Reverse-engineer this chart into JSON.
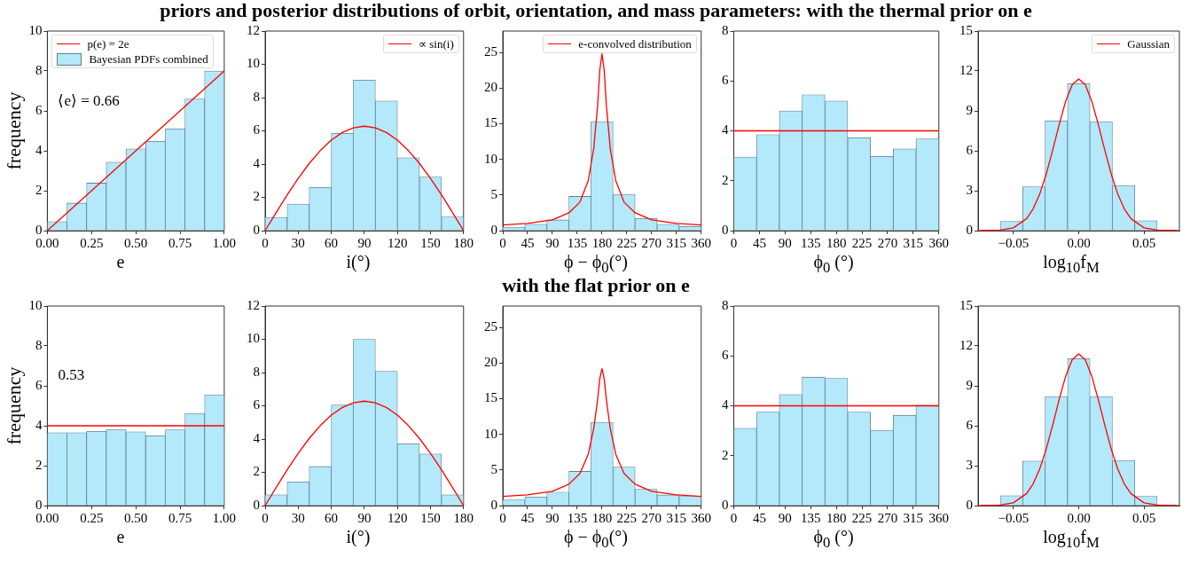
{
  "chart_data": [
    {
      "type": "histogram",
      "xlabel": "e",
      "ylabel": "frequency",
      "legend": "top left",
      "annotations": [
        "⟨e⟩ = 0.66"
      ],
      "bins": [
        0,
        0.111,
        0.222,
        0.333,
        0.444,
        0.556,
        0.667,
        0.778,
        0.889,
        1
      ],
      "xlim": [
        0,
        1
      ],
      "xticks": [
        {
          "value": 0,
          "label": "0.00"
        },
        {
          "value": 0.25,
          "label": "0.25"
        },
        {
          "value": 0.5,
          "label": "0.50"
        },
        {
          "value": 0.75,
          "label": "0.75"
        },
        {
          "value": 1,
          "label": "1.00"
        }
      ],
      "ylim": [
        0,
        10
      ],
      "yticks": [
        0,
        2,
        4,
        6,
        8,
        10
      ],
      "series": [
        {
          "type": "line",
          "name": "p(e) = 2e",
          "color": "#ff0000",
          "x": [
            0,
            1
          ],
          "values": [
            0,
            8
          ]
        },
        {
          "name": "Bayesian PDFs combined",
          "color": "#b3e9fb",
          "values": [
            0.45,
            1.38,
            2.38,
            3.43,
            4.1,
            4.48,
            5.1,
            6.6,
            8.0
          ]
        }
      ]
    },
    {
      "type": "histogram",
      "xlabel": "i(°)",
      "legend": "top right",
      "bins": [
        0,
        20,
        40,
        60,
        80,
        100,
        120,
        140,
        160,
        180
      ],
      "xlim": [
        0,
        180
      ],
      "xticks": [
        0,
        30,
        60,
        90,
        120,
        150,
        180
      ],
      "ylim": [
        0,
        12
      ],
      "yticks": [
        0,
        2,
        4,
        6,
        8,
        10,
        12
      ],
      "series": [
        {
          "type": "line",
          "name": "∝ sin(i)",
          "color": "#ff0000",
          "x": [
            0,
            10,
            20,
            30,
            40,
            50,
            60,
            70,
            80,
            90,
            100,
            110,
            120,
            130,
            140,
            150,
            160,
            170,
            180
          ],
          "values": [
            0,
            1.09,
            2.15,
            3.14,
            4.04,
            4.81,
            5.44,
            5.9,
            6.18,
            6.28,
            6.18,
            5.9,
            5.44,
            4.81,
            4.04,
            3.14,
            2.15,
            1.09,
            0
          ]
        },
        {
          "color": "#b3e9fb",
          "values": [
            0.8,
            1.6,
            2.6,
            5.85,
            9.05,
            7.8,
            4.38,
            3.22,
            0.82
          ]
        }
      ]
    },
    {
      "type": "histogram",
      "title": "priors and posterior distributions of orbit, orientation, and mass parameters: with the thermal prior on e",
      "xlabel": "ϕ − ϕ$_{0}$(°)",
      "legend": "top right",
      "bins": [
        0,
        40,
        80,
        120,
        160,
        200,
        240,
        280,
        320,
        360
      ],
      "xlim": [
        0,
        360
      ],
      "xticks": [
        0,
        45,
        90,
        135,
        180,
        225,
        270,
        315,
        360
      ],
      "ylim": [
        0,
        28
      ],
      "yticks": [
        0,
        5,
        10,
        15,
        20,
        25
      ],
      "series": [
        {
          "type": "line",
          "name": "e-convolved distribution",
          "color": "#ff0000",
          "x": [
            0,
            45,
            90,
            120,
            140,
            155,
            165,
            172,
            176,
            180,
            184,
            188,
            195,
            205,
            220,
            240,
            270,
            315,
            360
          ],
          "values": [
            0.8,
            1.0,
            1.5,
            2.5,
            4.0,
            7.0,
            11.5,
            17.5,
            22.5,
            24.8,
            22.5,
            17.5,
            11.5,
            7.0,
            4.0,
            2.5,
            1.5,
            1.0,
            0.8
          ]
        },
        {
          "color": "#b3e9fb",
          "values": [
            0.5,
            0.9,
            1.5,
            4.8,
            15.3,
            5.1,
            1.7,
            0.9,
            0.6
          ]
        }
      ]
    },
    {
      "type": "histogram",
      "xlabel": "ϕ$_{0}$ (°)",
      "bins": [
        0,
        40,
        80,
        120,
        160,
        200,
        240,
        280,
        320,
        360
      ],
      "xlim": [
        0,
        360
      ],
      "xticks": [
        0,
        45,
        90,
        135,
        180,
        225,
        270,
        315,
        360
      ],
      "ylim": [
        0,
        8
      ],
      "yticks": [
        0,
        2,
        4,
        6,
        8
      ],
      "series": [
        {
          "type": "line",
          "color": "#ff0000",
          "x": [
            0,
            360
          ],
          "values": [
            4,
            4
          ]
        },
        {
          "color": "#b3e9fb",
          "values": [
            2.95,
            3.85,
            4.8,
            5.45,
            5.2,
            3.72,
            2.98,
            3.28,
            3.68
          ]
        }
      ]
    },
    {
      "type": "histogram",
      "xlabel": "log$_{10}$f$_{M}$",
      "legend": "top right",
      "bins": [
        -0.06,
        -0.0429,
        -0.0257,
        -0.0086,
        0.0086,
        0.0257,
        0.0429,
        0.06
      ],
      "xlim": [
        -0.077,
        0.077
      ],
      "xticks": [
        {
          "value": -0.05,
          "label": "−0.05"
        },
        {
          "value": 0,
          "label": "0.00"
        },
        {
          "value": 0.05,
          "label": "0.05"
        }
      ],
      "ylim": [
        0,
        15
      ],
      "yticks": [
        0,
        3,
        6,
        9,
        12,
        15
      ],
      "series": [
        {
          "type": "line",
          "name": "Gaussian",
          "color": "#ff0000",
          "x": [
            -0.075,
            -0.06,
            -0.05,
            -0.04,
            -0.035,
            -0.03,
            -0.025,
            -0.02,
            -0.015,
            -0.01,
            -0.005,
            0,
            0.005,
            0.01,
            0.015,
            0.02,
            0.025,
            0.03,
            0.035,
            0.04,
            0.05,
            0.06,
            0.075
          ],
          "values": [
            0.01,
            0.04,
            0.21,
            0.89,
            1.61,
            2.71,
            4.2,
            6.02,
            7.96,
            9.72,
            10.96,
            11.4,
            10.96,
            9.72,
            7.96,
            6.02,
            4.2,
            2.71,
            1.61,
            0.89,
            0.21,
            0.04,
            0.01
          ]
        },
        {
          "color": "#b3e9fb",
          "values": [
            0.7,
            3.3,
            8.25,
            11.05,
            8.2,
            3.4,
            0.75
          ]
        }
      ]
    },
    {
      "type": "histogram",
      "xlabel": "e",
      "ylabel": "frequency",
      "annotations": [
        "0.53"
      ],
      "bins": [
        0,
        0.111,
        0.222,
        0.333,
        0.444,
        0.556,
        0.667,
        0.778,
        0.889,
        1
      ],
      "xlim": [
        0,
        1
      ],
      "xticks": [
        {
          "value": 0,
          "label": "0.00"
        },
        {
          "value": 0.25,
          "label": "0.25"
        },
        {
          "value": 0.5,
          "label": "0.50"
        },
        {
          "value": 0.75,
          "label": "0.75"
        },
        {
          "value": 1,
          "label": "1.00"
        }
      ],
      "ylim": [
        0,
        10
      ],
      "yticks": [
        0,
        2,
        4,
        6,
        8,
        10
      ],
      "series": [
        {
          "type": "line",
          "color": "#ff0000",
          "x": [
            0,
            1
          ],
          "values": [
            4,
            4
          ]
        },
        {
          "color": "#b3e9fb",
          "values": [
            3.65,
            3.65,
            3.72,
            3.82,
            3.7,
            3.5,
            3.8,
            4.62,
            5.55
          ]
        }
      ]
    },
    {
      "type": "histogram",
      "xlabel": "i(°)",
      "bins": [
        0,
        20,
        40,
        60,
        80,
        100,
        120,
        140,
        160,
        180
      ],
      "xlim": [
        0,
        180
      ],
      "xticks": [
        0,
        30,
        60,
        90,
        120,
        150,
        180
      ],
      "ylim": [
        0,
        12
      ],
      "yticks": [
        0,
        2,
        4,
        6,
        8,
        10,
        12
      ],
      "series": [
        {
          "type": "line",
          "color": "#ff0000",
          "x": [
            0,
            10,
            20,
            30,
            40,
            50,
            60,
            70,
            80,
            90,
            100,
            110,
            120,
            130,
            140,
            150,
            160,
            170,
            180
          ],
          "values": [
            0,
            1.09,
            2.15,
            3.14,
            4.04,
            4.81,
            5.44,
            5.9,
            6.18,
            6.28,
            6.18,
            5.9,
            5.44,
            4.81,
            4.04,
            3.14,
            2.15,
            1.09,
            0
          ]
        },
        {
          "color": "#b3e9fb",
          "values": [
            0.65,
            1.42,
            2.35,
            6.05,
            10.0,
            8.08,
            3.72,
            3.1,
            0.65
          ]
        }
      ]
    },
    {
      "type": "histogram",
      "title": "with the flat prior on e",
      "xlabel": "ϕ − ϕ$_{0}$(°)",
      "bins": [
        0,
        40,
        80,
        120,
        160,
        200,
        240,
        280,
        320,
        360
      ],
      "xlim": [
        0,
        360
      ],
      "xticks": [
        0,
        45,
        90,
        135,
        180,
        225,
        270,
        315,
        360
      ],
      "ylim": [
        0,
        28
      ],
      "yticks": [
        0,
        5,
        10,
        15,
        20,
        25
      ],
      "series": [
        {
          "type": "line",
          "color": "#ff0000",
          "x": [
            0,
            45,
            90,
            120,
            140,
            155,
            165,
            172,
            176,
            180,
            184,
            188,
            195,
            205,
            220,
            240,
            270,
            315,
            360
          ],
          "values": [
            1.3,
            1.5,
            2.0,
            3.0,
            4.5,
            7.2,
            10.8,
            14.8,
            17.8,
            19.2,
            17.8,
            14.8,
            10.8,
            7.2,
            4.5,
            3.0,
            2.0,
            1.5,
            1.3
          ]
        },
        {
          "color": "#b3e9fb",
          "values": [
            0.8,
            1.2,
            1.9,
            4.8,
            11.7,
            5.4,
            2.3,
            1.5,
            1.3
          ]
        }
      ]
    },
    {
      "type": "histogram",
      "xlabel": "ϕ$_{0}$ (°)",
      "bins": [
        0,
        40,
        80,
        120,
        160,
        200,
        240,
        280,
        320,
        360
      ],
      "xlim": [
        0,
        360
      ],
      "xticks": [
        0,
        45,
        90,
        135,
        180,
        225,
        270,
        315,
        360
      ],
      "ylim": [
        0,
        8
      ],
      "yticks": [
        0,
        2,
        4,
        6,
        8
      ],
      "series": [
        {
          "type": "line",
          "color": "#ff0000",
          "x": [
            0,
            360
          ],
          "values": [
            4,
            4
          ]
        },
        {
          "color": "#b3e9fb",
          "values": [
            3.1,
            3.75,
            4.45,
            5.15,
            5.1,
            3.75,
            3.02,
            3.62,
            4.02
          ]
        }
      ]
    },
    {
      "type": "histogram",
      "xlabel": "log$_{10}$f$_{M}$",
      "bins": [
        -0.06,
        -0.0429,
        -0.0257,
        -0.0086,
        0.0086,
        0.0257,
        0.0429,
        0.06
      ],
      "xlim": [
        -0.077,
        0.077
      ],
      "xticks": [
        {
          "value": -0.05,
          "label": "−0.05"
        },
        {
          "value": 0,
          "label": "0.00"
        },
        {
          "value": 0.05,
          "label": "0.05"
        }
      ],
      "ylim": [
        0,
        15
      ],
      "yticks": [
        0,
        3,
        6,
        9,
        12,
        15
      ],
      "series": [
        {
          "type": "line",
          "color": "#ff0000",
          "x": [
            -0.075,
            -0.06,
            -0.05,
            -0.04,
            -0.035,
            -0.03,
            -0.025,
            -0.02,
            -0.015,
            -0.01,
            -0.005,
            0,
            0.005,
            0.01,
            0.015,
            0.02,
            0.025,
            0.03,
            0.035,
            0.04,
            0.05,
            0.06,
            0.075
          ],
          "values": [
            0.01,
            0.04,
            0.21,
            0.89,
            1.61,
            2.71,
            4.2,
            6.02,
            7.96,
            9.72,
            10.96,
            11.4,
            10.96,
            9.72,
            7.96,
            6.02,
            4.2,
            2.71,
            1.61,
            0.89,
            0.21,
            0.04,
            0.01
          ]
        },
        {
          "color": "#b3e9fb",
          "values": [
            0.75,
            3.35,
            8.2,
            11.05,
            8.2,
            3.4,
            0.7
          ]
        }
      ]
    }
  ]
}
